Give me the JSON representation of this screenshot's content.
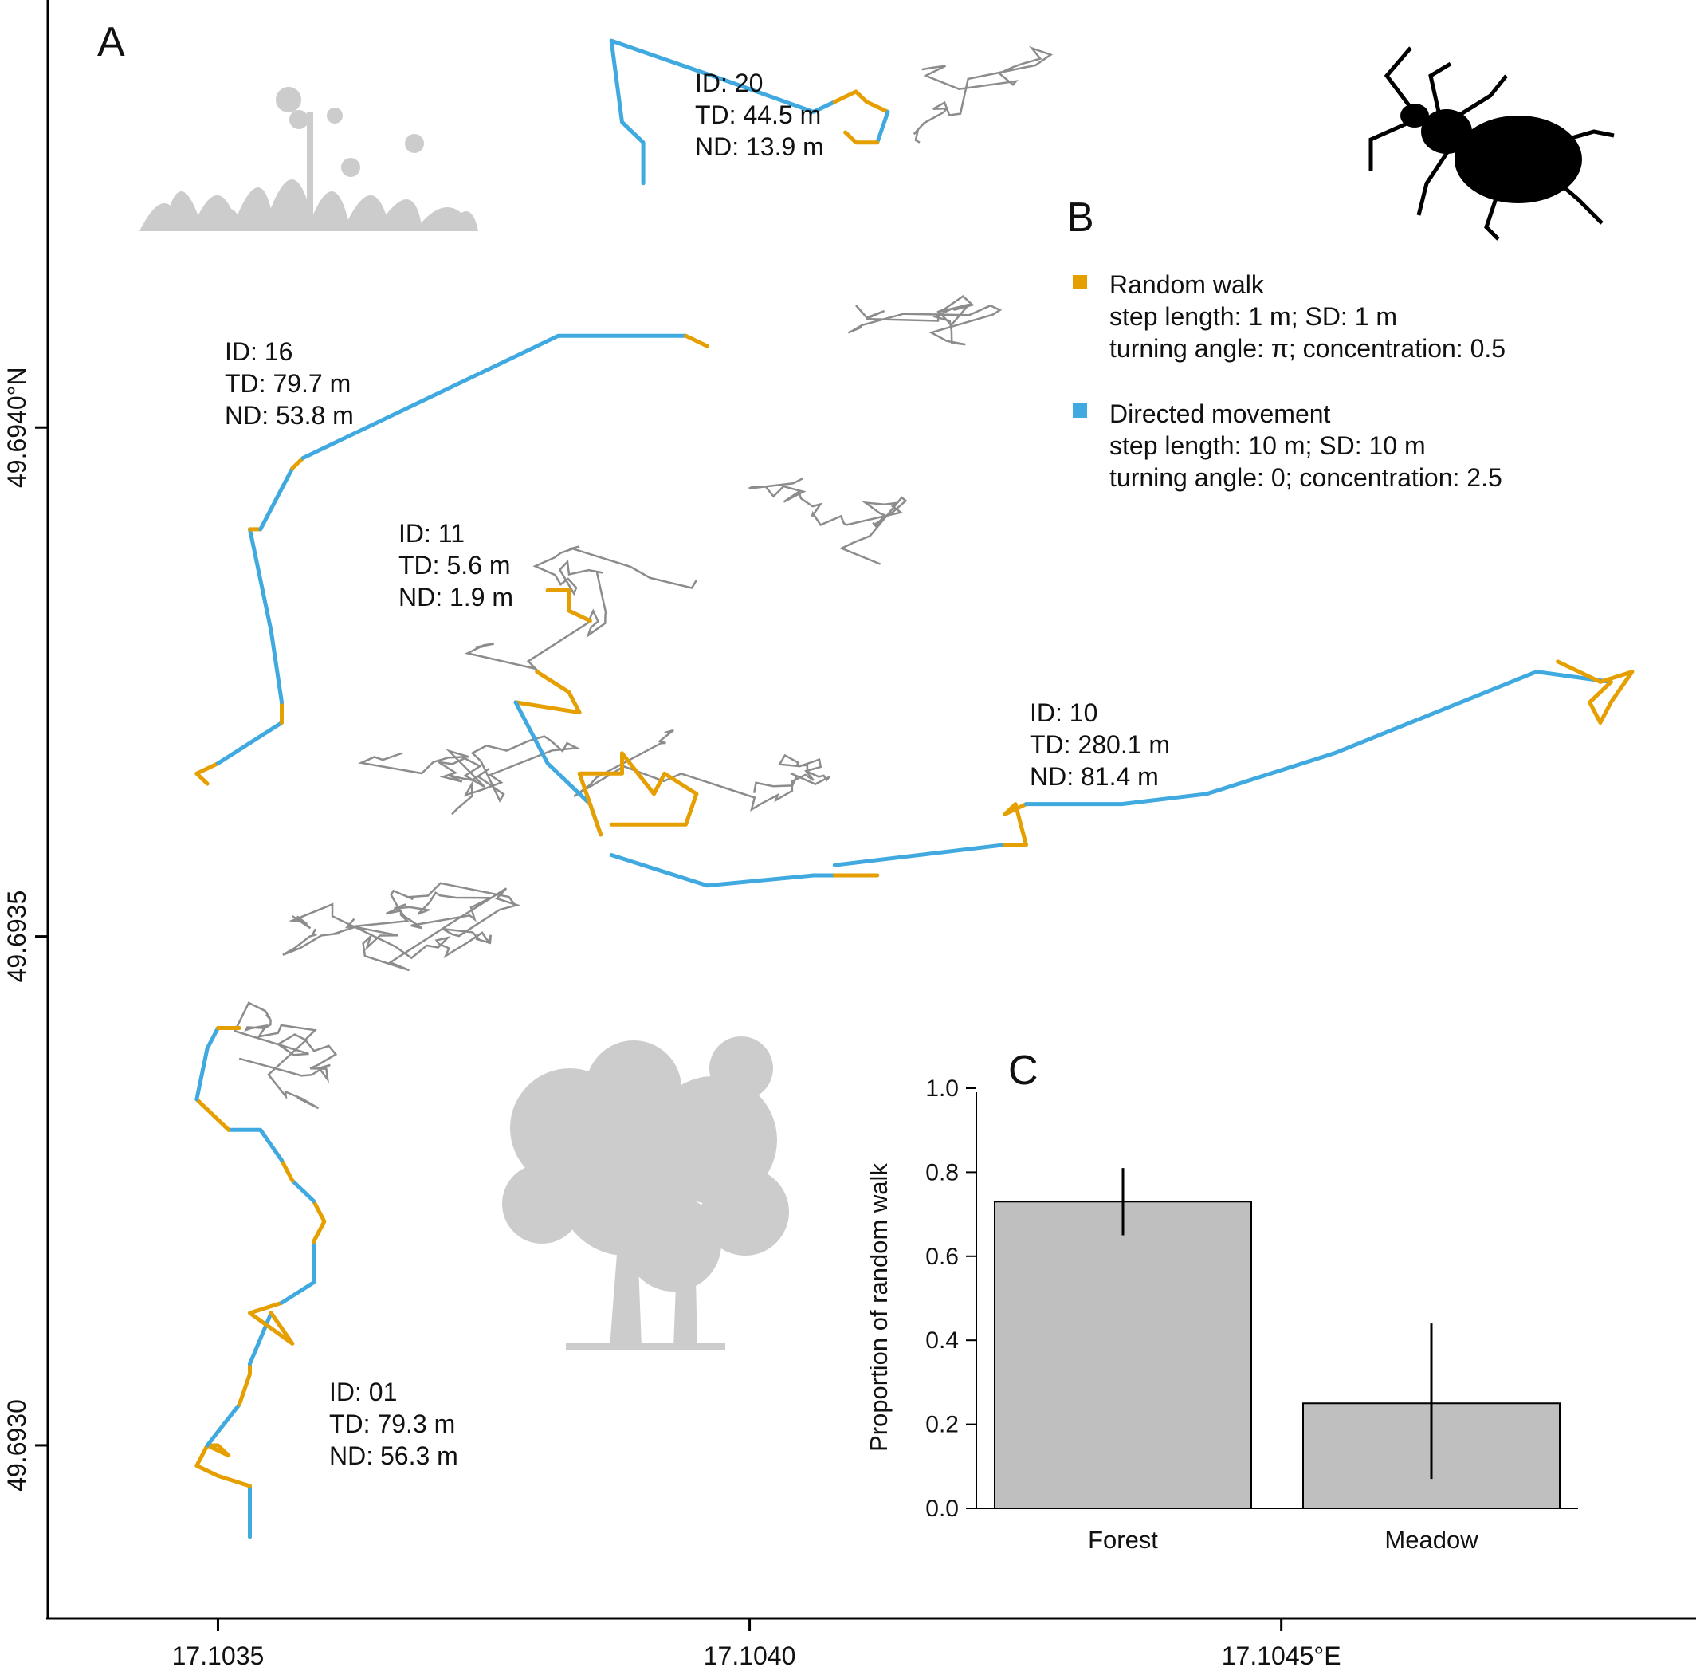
{
  "panels": {
    "a": "A",
    "b": "B",
    "c": "C"
  },
  "colors": {
    "random_walk": "#E69F00",
    "directed": "#3FA9E0",
    "other_tracks": "#8c8c8c",
    "bars": "#bfbfbf",
    "silhouette": "#cccccc",
    "beetle": "#000000"
  },
  "icons": [
    "meadow-grass-icon",
    "forest-tree-icon",
    "ground-beetle-icon"
  ],
  "annotations": [
    {
      "id": "ID: 20",
      "td": "TD: 44.5 m",
      "nd": "ND: 13.9 m"
    },
    {
      "id": "ID: 16",
      "td": "TD: 79.7 m",
      "nd": "ND: 53.8 m"
    },
    {
      "id": "ID: 11",
      "td": "TD: 5.6 m",
      "nd": "ND: 1.9 m"
    },
    {
      "id": "ID: 10",
      "td": "TD: 280.1 m",
      "nd": "ND: 81.4 m"
    },
    {
      "id": "ID: 01",
      "td": "TD: 79.3 m",
      "nd": "ND: 56.3 m"
    }
  ],
  "legend": {
    "random": {
      "title": "Random walk",
      "line1": "step length: 1 m; SD: 1 m",
      "line2": "turning angle: π; concentration: 0.5"
    },
    "directed": {
      "title": "Directed movement",
      "line1": "step length: 10 m; SD: 10 m",
      "line2": "turning angle: 0; concentration: 2.5"
    }
  },
  "chart_data": [
    {
      "type": "line",
      "panel": "A",
      "xlabel": "",
      "ylabel": "",
      "x_ticks": [
        "17.1035",
        "17.1040",
        "17.1045°E"
      ],
      "x_tick_values": [
        17.1035,
        17.104,
        17.1045
      ],
      "y_ticks": [
        "49.6930",
        "49.6935",
        "49.6940°N"
      ],
      "y_tick_values": [
        49.693,
        49.6935,
        49.694
      ],
      "xlim": [
        17.10334,
        17.10489
      ],
      "ylim": [
        49.69283,
        49.69442
      ],
      "grid": false,
      "series": [
        {
          "id": "ID: 01",
          "segments": [
            {
              "state": "directed",
              "points": [
                [
                  17.10353,
                  49.69291
                ],
                [
                  17.10353,
                  49.69296
                ]
              ]
            },
            {
              "state": "random",
              "points": [
                [
                  17.10353,
                  49.69296
                ],
                [
                  17.1035,
                  49.69297
                ],
                [
                  17.10348,
                  49.69298
                ],
                [
                  17.10349,
                  49.693
                ],
                [
                  17.10351,
                  49.69299
                ],
                [
                  17.1035,
                  49.693
                ],
                [
                  17.10349,
                  49.693
                ]
              ]
            },
            {
              "state": "directed",
              "points": [
                [
                  17.10349,
                  49.693
                ],
                [
                  17.10352,
                  49.69304
                ]
              ]
            },
            {
              "state": "random",
              "points": [
                [
                  17.10352,
                  49.69304
                ],
                [
                  17.10353,
                  49.69307
                ],
                [
                  17.10353,
                  49.69308
                ]
              ]
            },
            {
              "state": "directed",
              "points": [
                [
                  17.10353,
                  49.69308
                ],
                [
                  17.10355,
                  49.69313
                ]
              ]
            },
            {
              "state": "random",
              "points": [
                [
                  17.10355,
                  49.69313
                ],
                [
                  17.10357,
                  49.6931
                ],
                [
                  17.10353,
                  49.69313
                ],
                [
                  17.10356,
                  49.69314
                ]
              ]
            },
            {
              "state": "directed",
              "points": [
                [
                  17.10356,
                  49.69314
                ],
                [
                  17.10359,
                  49.69316
                ],
                [
                  17.10359,
                  49.6932
                ]
              ]
            },
            {
              "state": "random",
              "points": [
                [
                  17.10359,
                  49.6932
                ],
                [
                  17.1036,
                  49.69322
                ],
                [
                  17.10359,
                  49.69324
                ]
              ]
            },
            {
              "state": "directed",
              "points": [
                [
                  17.10359,
                  49.69324
                ],
                [
                  17.10357,
                  49.69326
                ]
              ]
            },
            {
              "state": "random",
              "points": [
                [
                  17.10357,
                  49.69326
                ],
                [
                  17.10356,
                  49.69328
                ]
              ]
            },
            {
              "state": "directed",
              "points": [
                [
                  17.10356,
                  49.69328
                ],
                [
                  17.10354,
                  49.69331
                ],
                [
                  17.10351,
                  49.69331
                ]
              ]
            },
            {
              "state": "random",
              "points": [
                [
                  17.10351,
                  49.69331
                ],
                [
                  17.10348,
                  49.69334
                ]
              ]
            },
            {
              "state": "directed",
              "points": [
                [
                  17.10348,
                  49.69334
                ],
                [
                  17.10349,
                  49.69339
                ],
                [
                  17.1035,
                  49.69341
                ]
              ]
            },
            {
              "state": "random",
              "points": [
                [
                  17.1035,
                  49.69341
                ],
                [
                  17.10352,
                  49.69341
                ]
              ]
            }
          ]
        },
        {
          "id": "ID: 16",
          "segments": [
            {
              "state": "random",
              "points": [
                [
                  17.10349,
                  49.69365
                ],
                [
                  17.10348,
                  49.69366
                ],
                [
                  17.1035,
                  49.69367
                ]
              ]
            },
            {
              "state": "directed",
              "points": [
                [
                  17.1035,
                  49.69367
                ],
                [
                  17.10356,
                  49.69371
                ]
              ]
            },
            {
              "state": "random",
              "points": [
                [
                  17.10356,
                  49.69371
                ],
                [
                  17.10356,
                  49.69373
                ]
              ]
            },
            {
              "state": "directed",
              "points": [
                [
                  17.10356,
                  49.69373
                ],
                [
                  17.10355,
                  49.6938
                ],
                [
                  17.10353,
                  49.6939
                ]
              ]
            },
            {
              "state": "random",
              "points": [
                [
                  17.10353,
                  49.6939
                ],
                [
                  17.10354,
                  49.6939
                ]
              ]
            },
            {
              "state": "directed",
              "points": [
                [
                  17.10354,
                  49.6939
                ],
                [
                  17.10357,
                  49.69396
                ]
              ]
            },
            {
              "state": "random",
              "points": [
                [
                  17.10357,
                  49.69396
                ],
                [
                  17.10358,
                  49.69397
                ]
              ]
            },
            {
              "state": "directed",
              "points": [
                [
                  17.10358,
                  49.69397
                ],
                [
                  17.10382,
                  49.69409
                ],
                [
                  17.10394,
                  49.69409
                ]
              ]
            },
            {
              "state": "random",
              "points": [
                [
                  17.10394,
                  49.69409
                ],
                [
                  17.10396,
                  49.69408
                ]
              ]
            }
          ]
        },
        {
          "id": "ID: 11",
          "segments": [
            {
              "state": "random",
              "points": [
                [
                  17.10381,
                  49.69384
                ],
                [
                  17.10383,
                  49.69384
                ],
                [
                  17.10383,
                  49.69382
                ],
                [
                  17.10385,
                  49.69381
                ]
              ]
            }
          ]
        },
        {
          "id": "ID: 20",
          "segments": [
            {
              "state": "directed",
              "points": [
                [
                  17.1039,
                  49.69424
                ],
                [
                  17.1039,
                  49.69428
                ],
                [
                  17.10388,
                  49.6943
                ],
                [
                  17.10387,
                  49.69438
                ],
                [
                  17.10398,
                  49.69434
                ],
                [
                  17.10406,
                  49.69431
                ],
                [
                  17.10408,
                  49.69432
                ]
              ]
            },
            {
              "state": "random",
              "points": [
                [
                  17.10408,
                  49.69432
                ],
                [
                  17.1041,
                  49.69433
                ],
                [
                  17.10411,
                  49.69432
                ],
                [
                  17.10413,
                  49.69431
                ]
              ]
            },
            {
              "state": "directed",
              "points": [
                [
                  17.10413,
                  49.69431
                ],
                [
                  17.10412,
                  49.69428
                ]
              ]
            },
            {
              "state": "random",
              "points": [
                [
                  17.10412,
                  49.69428
                ],
                [
                  17.1041,
                  49.69428
                ],
                [
                  17.10409,
                  49.69429
                ]
              ]
            }
          ]
        },
        {
          "id": "ID: 10",
          "segments": [
            {
              "state": "random",
              "points": [
                [
                  17.1038,
                  49.69376
                ],
                [
                  17.10383,
                  49.69374
                ],
                [
                  17.10384,
                  49.69372
                ],
                [
                  17.10378,
                  49.69373
                ]
              ]
            },
            {
              "state": "directed",
              "points": [
                [
                  17.10378,
                  49.69373
                ],
                [
                  17.10381,
                  49.69367
                ],
                [
                  17.10385,
                  49.69363
                ],
                [
                  17.10386,
                  49.6936
                ]
              ]
            },
            {
              "state": "random",
              "points": [
                [
                  17.10386,
                  49.6936
                ],
                [
                  17.10384,
                  49.69366
                ],
                [
                  17.10388,
                  49.69366
                ],
                [
                  17.10388,
                  49.69368
                ],
                [
                  17.10391,
                  49.69364
                ],
                [
                  17.10392,
                  49.69366
                ],
                [
                  17.10395,
                  49.69364
                ],
                [
                  17.10394,
                  49.69361
                ],
                [
                  17.10387,
                  49.69361
                ]
              ]
            },
            {
              "state": "directed",
              "points": [
                [
                  17.10387,
                  49.69358
                ],
                [
                  17.10396,
                  49.69355
                ],
                [
                  17.10406,
                  49.69356
                ],
                [
                  17.10412,
                  49.69356
                ]
              ]
            },
            {
              "state": "random",
              "points": [
                [
                  17.10412,
                  49.69356
                ],
                [
                  17.10408,
                  49.69356
                ]
              ]
            },
            {
              "state": "directed",
              "points": [
                [
                  17.10408,
                  49.69357
                ],
                [
                  17.10424,
                  49.69359
                ]
              ]
            },
            {
              "state": "random",
              "points": [
                [
                  17.10424,
                  49.69359
                ],
                [
                  17.10426,
                  49.69359
                ],
                [
                  17.10425,
                  49.69363
                ],
                [
                  17.10424,
                  49.69362
                ],
                [
                  17.10426,
                  49.69363
                ]
              ]
            },
            {
              "state": "directed",
              "points": [
                [
                  17.10426,
                  49.69363
                ],
                [
                  17.10435,
                  49.69363
                ],
                [
                  17.10443,
                  49.69364
                ],
                [
                  17.10455,
                  49.69368
                ],
                [
                  17.10474,
                  49.69376
                ],
                [
                  17.10481,
                  49.69375
                ]
              ]
            },
            {
              "state": "random",
              "points": [
                [
                  17.10481,
                  49.69375
                ],
                [
                  17.10479,
                  49.69373
                ],
                [
                  17.1048,
                  49.69371
                ],
                [
                  17.10481,
                  49.69373
                ],
                [
                  17.10483,
                  49.69376
                ],
                [
                  17.1048,
                  49.69375
                ],
                [
                  17.10476,
                  49.69377
                ]
              ]
            }
          ]
        }
      ],
      "background_tracks": true
    },
    {
      "type": "bar",
      "panel": "C",
      "categories": [
        "Forest",
        "Meadow"
      ],
      "values": [
        0.73,
        0.25
      ],
      "error_low": [
        0.65,
        0.07
      ],
      "error_high": [
        0.81,
        0.44
      ],
      "xlabel": "",
      "ylabel": "Proportion of random walk",
      "ylim": [
        0,
        1.0
      ],
      "y_ticks": [
        "0.0",
        "0.2",
        "0.4",
        "0.6",
        "0.8",
        "1.0"
      ]
    }
  ]
}
